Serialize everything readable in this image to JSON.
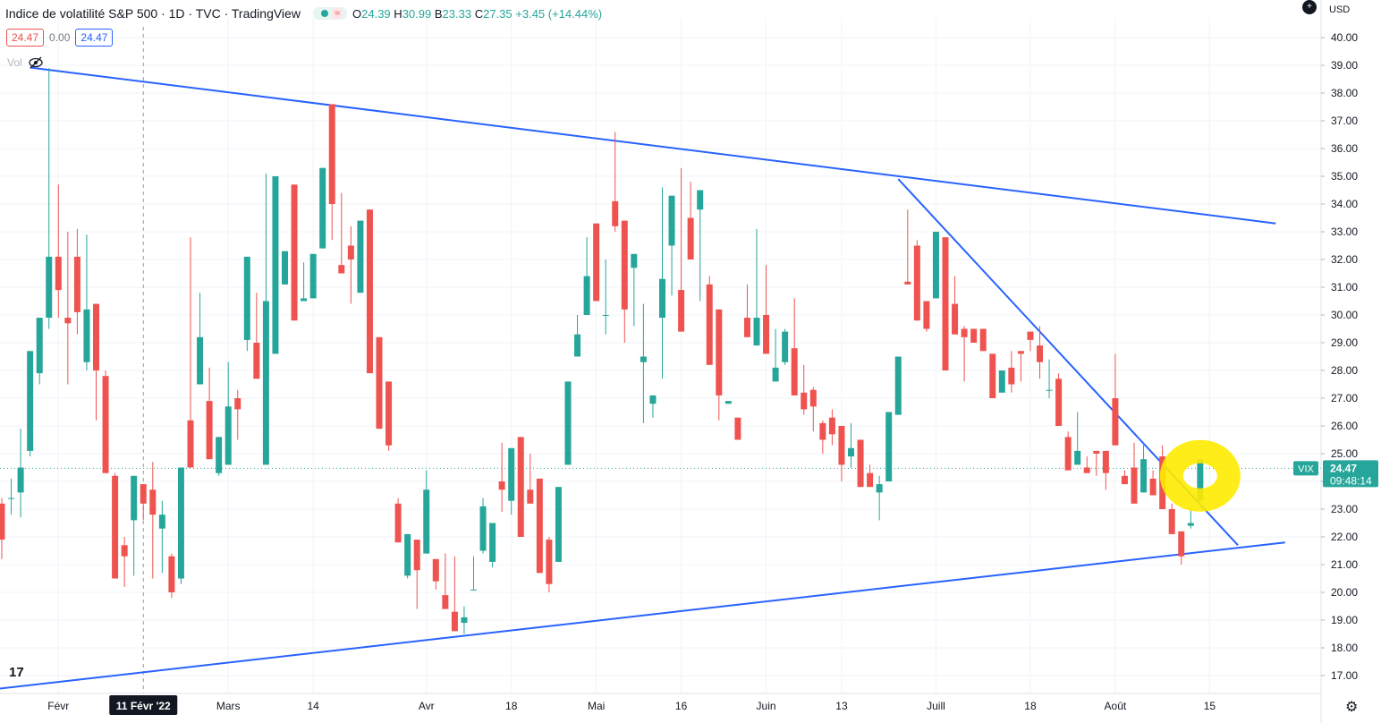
{
  "header": {
    "title": "Indice de volatilité S&P 500 · 1D · TVC · TradingView",
    "wave_icon": "≈",
    "ohlc": {
      "o_label": "O",
      "o": "24.39",
      "h_label": "H",
      "h": "30.99",
      "b_label": "B",
      "b": "23.33",
      "c_label": "C",
      "c": "27.35",
      "change": "+3.45 (+14.44%)"
    }
  },
  "inputs": {
    "a": "24.47",
    "b": "0.00",
    "c": "24.47"
  },
  "vol_label": "Vol",
  "vol_icon": "eye-slash-icon",
  "currency": "USD",
  "logo_text": "17",
  "colors": {
    "up": "#26a69a",
    "down": "#ef5350",
    "trend": "#2962ff",
    "highlight": "#ffeb00",
    "grid": "#f0f3fa"
  },
  "chart_data": {
    "type": "candlestick",
    "y_axis": {
      "range": [
        16.3,
        41
      ],
      "ticks": [
        "17.00",
        "18.00",
        "19.00",
        "20.00",
        "21.00",
        "22.00",
        "23.00",
        "24.00",
        "25.00",
        "26.00",
        "27.00",
        "28.00",
        "29.00",
        "30.00",
        "31.00",
        "32.00",
        "33.00",
        "34.00",
        "35.00",
        "36.00",
        "37.00",
        "38.00",
        "39.00",
        "40.00"
      ]
    },
    "x_axis": {
      "labels": [
        {
          "i": 6,
          "text": "Févr"
        },
        {
          "i": 24,
          "text": "Mars"
        },
        {
          "i": 33,
          "text": "14"
        },
        {
          "i": 45,
          "text": "Avr"
        },
        {
          "i": 54,
          "text": "18"
        },
        {
          "i": 63,
          "text": "Mai"
        },
        {
          "i": 72,
          "text": "16"
        },
        {
          "i": 81,
          "text": "Juin"
        },
        {
          "i": 89,
          "text": "13"
        },
        {
          "i": 99,
          "text": "Juill"
        },
        {
          "i": 109,
          "text": "18"
        },
        {
          "i": 118,
          "text": "Août"
        },
        {
          "i": 128,
          "text": "15"
        }
      ],
      "crosshair": {
        "i": 15,
        "text": "11 Févr '22"
      }
    },
    "last_price": {
      "symbol": "VIX",
      "value": "24.47",
      "countdown": "09:48:14",
      "y": 24.47
    },
    "candles": [
      [
        23.2,
        23.4,
        21.2,
        21.9
      ],
      [
        23.4,
        24.1,
        22.8,
        23.4
      ],
      [
        23.6,
        25.9,
        22.7,
        24.5
      ],
      [
        25.1,
        28.2,
        24.9,
        28.7
      ],
      [
        27.9,
        29.9,
        27.5,
        29.9
      ],
      [
        29.9,
        38.9,
        29.5,
        32.1
      ],
      [
        32.1,
        34.7,
        29.9,
        30.9
      ],
      [
        29.9,
        33.0,
        27.5,
        29.7
      ],
      [
        32.1,
        33.1,
        29.3,
        30.1
      ],
      [
        28.3,
        32.9,
        28.0,
        30.2
      ],
      [
        30.4,
        27.8,
        26.2,
        28.0
      ],
      [
        27.8,
        28.0,
        24.8,
        24.3
      ],
      [
        24.2,
        24.3,
        20.7,
        20.5
      ],
      [
        21.7,
        22.0,
        20.2,
        21.3
      ],
      [
        22.6,
        23.4,
        20.6,
        24.2
      ],
      [
        23.9,
        22.5,
        22.6,
        23.2
      ],
      [
        23.7,
        24.7,
        20.5,
        22.8
      ],
      [
        22.3,
        23.3,
        20.7,
        22.8
      ],
      [
        21.3,
        21.4,
        19.8,
        20.0
      ],
      [
        20.5,
        22.6,
        20.3,
        24.5
      ],
      [
        26.2,
        32.8,
        27.6,
        24.5
      ],
      [
        27.5,
        30.8,
        28.3,
        29.2
      ],
      [
        26.9,
        28.1,
        27.2,
        24.8
      ],
      [
        24.3,
        23.9,
        24.2,
        25.6
      ],
      [
        24.6,
        28.3,
        26.3,
        26.7
      ],
      [
        27.0,
        27.3,
        25.5,
        26.6
      ],
      [
        29.1,
        29.5,
        28.7,
        32.1
      ],
      [
        29.0,
        30.8,
        30.7,
        27.7
      ],
      [
        24.6,
        35.1,
        36.6,
        30.5
      ],
      [
        28.6,
        32.0,
        34.5,
        35.0
      ],
      [
        31.1,
        28.5,
        33.8,
        32.3
      ],
      [
        34.7,
        30.0,
        30.6,
        29.8
      ],
      [
        30.5,
        31.9,
        33.9,
        30.6
      ],
      [
        30.6,
        31.5,
        36.9,
        32.2
      ],
      [
        32.4,
        31.2,
        33.9,
        35.3
      ],
      [
        37.6,
        32.5,
        32.7,
        34.0
      ],
      [
        31.8,
        34.4,
        32.0,
        31.5
      ],
      [
        32.5,
        33.2,
        30.4,
        32.0
      ],
      [
        30.8,
        31.5,
        30.8,
        33.4
      ],
      [
        33.8,
        31.0,
        29.1,
        27.9
      ],
      [
        29.2,
        28.1,
        26.2,
        25.9
      ],
      [
        27.6,
        24.8,
        25.1,
        25.3
      ],
      [
        23.2,
        23.4,
        22.3,
        21.8
      ],
      [
        20.6,
        21.3,
        20.5,
        22.1
      ],
      [
        21.9,
        21.0,
        19.4,
        20.8
      ],
      [
        21.4,
        24.4,
        22.2,
        23.7
      ],
      [
        21.2,
        19.1,
        20.1,
        20.4
      ],
      [
        19.9,
        21.4,
        19.4,
        19.4
      ],
      [
        19.3,
        21.3,
        20.2,
        18.6
      ],
      [
        18.9,
        19.5,
        18.5,
        19.1
      ],
      [
        20.1,
        21.3,
        20.5,
        20.1
      ],
      [
        21.5,
        23.4,
        21.4,
        23.1
      ],
      [
        21.1,
        21.3,
        20.9,
        22.5
      ],
      [
        24.0,
        25.4,
        22.9,
        23.7
      ],
      [
        23.3,
        23.9,
        22.8,
        25.2
      ],
      [
        25.6,
        24.2,
        24.7,
        22.0
      ],
      [
        23.7,
        25.0,
        25.4,
        23.2
      ],
      [
        24.1,
        23.5,
        22.1,
        20.7
      ],
      [
        21.9,
        22.0,
        20.0,
        20.3
      ],
      [
        21.1,
        23.4,
        22.4,
        23.8
      ],
      [
        24.6,
        26.1,
        25.4,
        27.6
      ],
      [
        28.5,
        30.0,
        31.7,
        29.3
      ],
      [
        30.0,
        32.8,
        33.9,
        31.4
      ],
      [
        33.3,
        31.4,
        32.7,
        30.5
      ],
      [
        30.0,
        32.0,
        29.3,
        30.0
      ],
      [
        34.1,
        36.6,
        33.0,
        33.2
      ],
      [
        33.4,
        31.1,
        29.0,
        30.2
      ],
      [
        31.7,
        29.0,
        29.6,
        32.2
      ],
      [
        28.3,
        30.4,
        26.1,
        28.5
      ],
      [
        26.8,
        24.8,
        26.3,
        27.1
      ],
      [
        29.9,
        34.6,
        27.7,
        31.3
      ],
      [
        32.5,
        33.9,
        30.7,
        34.3
      ],
      [
        30.9,
        35.3,
        31.5,
        29.4
      ],
      [
        33.5,
        34.8,
        33.2,
        32.0
      ],
      [
        33.8,
        34.5,
        30.5,
        34.5
      ],
      [
        31.1,
        31.4,
        29.0,
        28.2
      ],
      [
        30.2,
        30.2,
        26.2,
        27.1
      ],
      [
        26.8,
        26.1,
        27.6,
        26.9
      ],
      [
        26.3,
        26.3,
        25.6,
        25.5
      ],
      [
        29.9,
        31.1,
        30.8,
        29.2
      ],
      [
        28.9,
        33.1,
        29.6,
        29.9
      ],
      [
        30.0,
        31.8,
        30.2,
        28.6
      ],
      [
        27.6,
        29.5,
        29.5,
        28.1
      ],
      [
        28.3,
        29.5,
        28.2,
        29.4
      ],
      [
        28.8,
        30.6,
        29.8,
        27.1
      ],
      [
        27.2,
        28.2,
        26.4,
        26.6
      ],
      [
        27.3,
        27.4,
        25.8,
        26.7
      ],
      [
        26.1,
        26.2,
        25.0,
        25.5
      ],
      [
        26.3,
        26.6,
        25.3,
        25.7
      ],
      [
        26.0,
        25.9,
        24.0,
        24.6
      ],
      [
        24.9,
        26.1,
        24.5,
        25.2
      ],
      [
        25.5,
        25.0,
        24.4,
        23.8
      ],
      [
        24.3,
        24.6,
        24.2,
        23.8
      ],
      [
        23.6,
        24.2,
        22.6,
        23.9
      ],
      [
        24.0,
        26.4,
        25.5,
        26.5
      ],
      [
        26.4,
        27.6,
        28.6,
        28.5
      ],
      [
        31.2,
        33.8,
        31.3,
        31.1
      ],
      [
        32.5,
        32.7,
        30.9,
        29.8
      ],
      [
        30.5,
        28.0,
        29.4,
        29.5
      ],
      [
        30.6,
        32.9,
        31.2,
        33.0
      ],
      [
        32.8,
        31.7,
        30.0,
        28.0
      ],
      [
        30.4,
        31.4,
        32.1,
        29.3
      ],
      [
        29.5,
        29.6,
        27.6,
        29.2
      ],
      [
        29.5,
        29.2,
        29.4,
        29.0
      ],
      [
        29.5,
        29.5,
        28.7,
        28.7
      ],
      [
        28.6,
        28.3,
        27.2,
        27.0
      ],
      [
        27.2,
        27.4,
        28.0,
        28.0
      ],
      [
        28.1,
        28.7,
        27.2,
        27.5
      ],
      [
        28.7,
        28.5,
        27.6,
        28.6
      ],
      [
        29.4,
        29.3,
        28.7,
        29.1
      ],
      [
        28.9,
        29.6,
        27.7,
        28.3
      ],
      [
        27.3,
        28.4,
        27.0,
        27.3
      ],
      [
        27.7,
        27.9,
        26.9,
        26.0
      ],
      [
        25.6,
        25.8,
        24.9,
        24.4
      ],
      [
        24.6,
        26.5,
        25.2,
        25.1
      ],
      [
        24.5,
        24.9,
        24.4,
        24.3
      ],
      [
        25.1,
        25.1,
        24.2,
        25.0
      ],
      [
        25.1,
        24.5,
        23.7,
        24.3
      ],
      [
        27.0,
        28.6,
        26.3,
        25.3
      ],
      [
        24.2,
        24.4,
        24.1,
        23.9
      ],
      [
        24.5,
        25.4,
        25.2,
        23.2
      ],
      [
        23.6,
        25.4,
        24.2,
        24.8
      ],
      [
        24.1,
        24.4,
        23.7,
        23.5
      ],
      [
        24.9,
        25.3,
        24.9,
        23.0
      ],
      [
        23.0,
        23.2,
        22.4,
        22.1
      ],
      [
        22.2,
        22.2,
        21.0,
        21.3
      ],
      [
        22.4,
        23.1,
        22.3,
        22.5
      ],
      [
        23.3,
        24.7,
        23.8,
        24.8
      ]
    ],
    "trendlines": [
      {
        "name": "upper",
        "from": {
          "i": 3,
          "y": 38.92
        },
        "to": {
          "i": 135,
          "y": 33.3
        }
      },
      {
        "name": "lower",
        "from": {
          "i": -1,
          "y": 16.5
        },
        "to": {
          "i": 136,
          "y": 21.8
        }
      },
      {
        "name": "descending",
        "from": {
          "i": 95,
          "y": 34.9
        },
        "to": {
          "i": 131,
          "y": 21.7
        }
      }
    ]
  }
}
